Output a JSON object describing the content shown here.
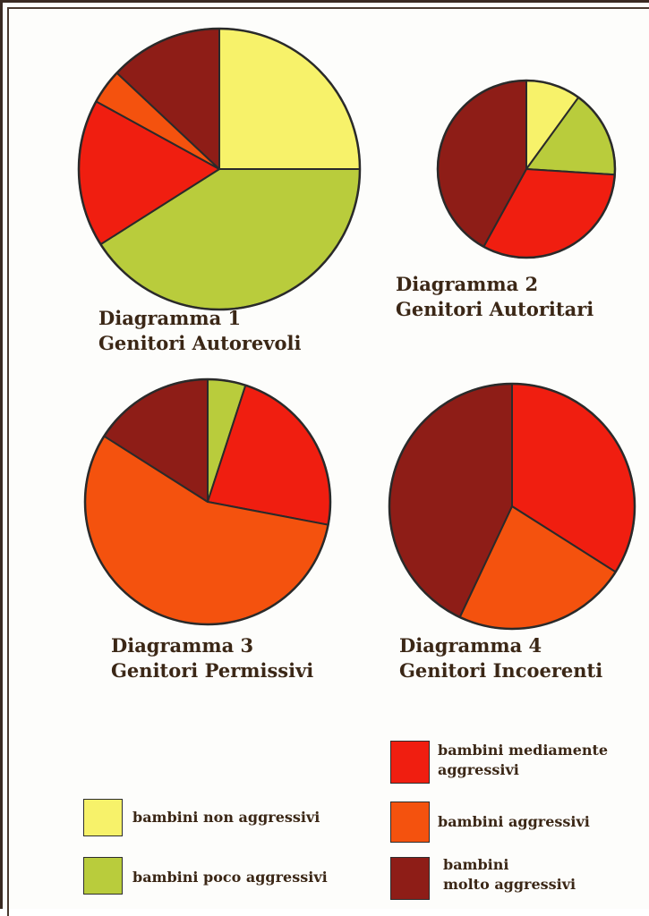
{
  "chart_data": {
    "type": "pie",
    "legend": {
      "position": "bottom",
      "entries": [
        {
          "key": "non",
          "lines": [
            "bambini non aggressivi"
          ],
          "color": "#f7f26a"
        },
        {
          "key": "poco",
          "lines": [
            "bambini poco aggressivi"
          ],
          "color": "#b9cc3c"
        },
        {
          "key": "medi",
          "lines": [
            "bambini mediamente",
            "aggressivi"
          ],
          "color": "#f01e10"
        },
        {
          "key": "aggr",
          "lines": [
            "bambini aggressivi"
          ],
          "color": "#f4520e"
        },
        {
          "key": "molto",
          "lines": [
            "bambini",
            "molto aggressivi"
          ],
          "color": "#8e1d17"
        }
      ]
    },
    "charts": [
      {
        "id": "d1",
        "title_lines": [
          "Diagramma 1",
          "Genitori Autorevoli"
        ],
        "slices": [
          {
            "key": "non",
            "value": 25
          },
          {
            "key": "poco",
            "value": 41
          },
          {
            "key": "medi",
            "value": 17
          },
          {
            "key": "aggr",
            "value": 4
          },
          {
            "key": "molto",
            "value": 13
          }
        ]
      },
      {
        "id": "d2",
        "title_lines": [
          "Diagramma 2",
          "Genitori Autoritari"
        ],
        "slices": [
          {
            "key": "non",
            "value": 10
          },
          {
            "key": "poco",
            "value": 16
          },
          {
            "key": "medi",
            "value": 32
          },
          {
            "key": "molto",
            "value": 42
          }
        ]
      },
      {
        "id": "d3",
        "title_lines": [
          "Diagramma 3",
          "Genitori Permissivi"
        ],
        "slices": [
          {
            "key": "poco",
            "value": 5
          },
          {
            "key": "medi",
            "value": 23
          },
          {
            "key": "aggr",
            "value": 56
          },
          {
            "key": "molto",
            "value": 16
          }
        ]
      },
      {
        "id": "d4",
        "title_lines": [
          "Diagramma 4",
          "Genitori Incoerenti"
        ],
        "slices": [
          {
            "key": "medi",
            "value": 34
          },
          {
            "key": "aggr",
            "value": 23
          },
          {
            "key": "molto",
            "value": 43
          }
        ]
      }
    ]
  }
}
